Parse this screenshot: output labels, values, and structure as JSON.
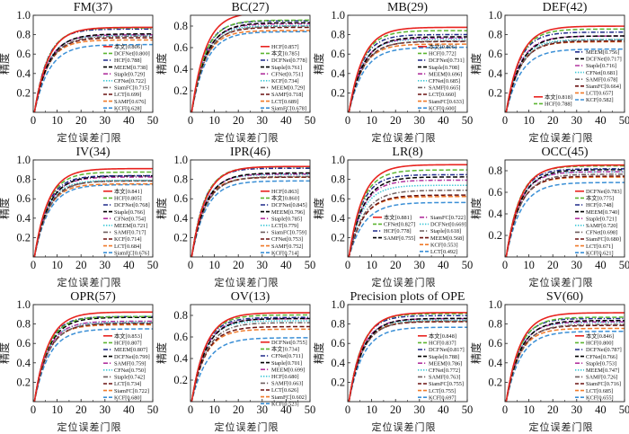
{
  "figure": {
    "xlabel": "定位误差门限",
    "ylabel": "精度"
  },
  "styles": {
    "colors": [
      "#e8231f",
      "#5cb531",
      "#1f2a8a",
      "#000000",
      "#b2359f",
      "#3cc7d6",
      "#6e5f5f",
      "#6b1210",
      "#f07a2a",
      "#3a8fd6"
    ],
    "dashes": [
      "solid",
      "dashed",
      "dash-dot",
      "dashed",
      "dash-dot",
      "dotted",
      "dash-dot",
      "dashed",
      "dashed",
      "dashed"
    ]
  },
  "chart_data": [
    {
      "type": "line",
      "title": "FM(37)",
      "xlabel": "定位误差门限",
      "ylabel": "精度",
      "xlim": [
        0,
        50
      ],
      "ylim": [
        0,
        1.0
      ],
      "xticks": [
        "0",
        "10",
        "20",
        "30",
        "40",
        "50"
      ],
      "yticks": [
        "0.2",
        "0.4",
        "0.6",
        "0.8",
        "1.0"
      ],
      "legend_position": "bottom-right",
      "series": [
        {
          "name": "本文",
          "score": 0.806
        },
        {
          "name": "DCFNet",
          "score": 0.8
        },
        {
          "name": "HCF",
          "score": 0.788
        },
        {
          "name": "MEEM",
          "score": 0.738
        },
        {
          "name": "Staple",
          "score": 0.729
        },
        {
          "name": "CFNet",
          "score": 0.722
        },
        {
          "name": "SiamFC",
          "score": 0.715
        },
        {
          "name": "LCT",
          "score": 0.699
        },
        {
          "name": "SAMF",
          "score": 0.676
        },
        {
          "name": "KCF",
          "score": 0.628
        }
      ]
    },
    {
      "type": "line",
      "title": "BC(27)",
      "xlabel": "定位误差门限",
      "ylabel": "精度",
      "xlim": [
        0,
        50
      ],
      "ylim": [
        0,
        0.9
      ],
      "xticks": [
        "0",
        "10",
        "20",
        "30",
        "40",
        "50"
      ],
      "yticks": [
        "0.2",
        "0.4",
        "0.6",
        "0.8"
      ],
      "legend_position": "bottom-right",
      "series": [
        {
          "name": "HCF",
          "score": 0.857
        },
        {
          "name": "本文",
          "score": 0.785
        },
        {
          "name": "DCFNet",
          "score": 0.778
        },
        {
          "name": "Staple",
          "score": 0.761
        },
        {
          "name": "CFNet",
          "score": 0.751
        },
        {
          "name": "KCF",
          "score": 0.734
        },
        {
          "name": "MEEM",
          "score": 0.729
        },
        {
          "name": "SAMF",
          "score": 0.718
        },
        {
          "name": "LCT",
          "score": 0.689
        },
        {
          "name": "SiamFC",
          "score": 0.678
        }
      ]
    },
    {
      "type": "line",
      "title": "MB(29)",
      "xlabel": "定位误差门限",
      "ylabel": "精度",
      "xlim": [
        0,
        50
      ],
      "ylim": [
        0,
        1.0
      ],
      "xticks": [
        "0",
        "10",
        "20",
        "30",
        "40",
        "50"
      ],
      "yticks": [
        "0.2",
        "0.4",
        "0.6",
        "0.8",
        "1.0"
      ],
      "legend_position": "bottom-right",
      "series": [
        {
          "name": "本文",
          "score": 0.806
        },
        {
          "name": "HCF",
          "score": 0.772
        },
        {
          "name": "DCFNet",
          "score": 0.731
        },
        {
          "name": "Staple",
          "score": 0.708
        },
        {
          "name": "MEEM",
          "score": 0.696
        },
        {
          "name": "CFNet",
          "score": 0.685
        },
        {
          "name": "SAMF",
          "score": 0.665
        },
        {
          "name": "LCT",
          "score": 0.66
        },
        {
          "name": "SiamFC",
          "score": 0.633
        },
        {
          "name": "KCF",
          "score": 0.6
        }
      ]
    },
    {
      "type": "line",
      "title": "DEF(42)",
      "xlabel": "定位误差门限",
      "ylabel": "精度",
      "xlim": [
        0,
        50
      ],
      "ylim": [
        0,
        1.0
      ],
      "xticks": [
        "0",
        "10",
        "20",
        "30",
        "40",
        "50"
      ],
      "yticks": [
        "0.2",
        "0.4",
        "0.6",
        "0.8",
        "1.0"
      ],
      "legend_position": "bottom-right-two-column",
      "series": [
        {
          "name": "本文",
          "score": 0.818
        },
        {
          "name": "HCF",
          "score": 0.788
        },
        {
          "name": "MEEM",
          "score": 0.756
        },
        {
          "name": "DCFNet",
          "score": 0.717
        },
        {
          "name": "Staple",
          "score": 0.716
        },
        {
          "name": "CFNet",
          "score": 0.681
        },
        {
          "name": "SAMF",
          "score": 0.678
        },
        {
          "name": "SiamFC",
          "score": 0.664
        },
        {
          "name": "LCT",
          "score": 0.657
        },
        {
          "name": "KCF",
          "score": 0.582
        }
      ]
    },
    {
      "type": "line",
      "title": "IV(34)",
      "xlabel": "定位误差门限",
      "ylabel": "精度",
      "xlim": [
        0,
        50
      ],
      "ylim": [
        0,
        1.0
      ],
      "xticks": [
        "0",
        "10",
        "20",
        "30",
        "40",
        "50"
      ],
      "yticks": [
        "0.2",
        "0.4",
        "0.6",
        "0.8",
        "1.0"
      ],
      "legend_position": "bottom-right",
      "series": [
        {
          "name": "本文",
          "score": 0.841
        },
        {
          "name": "HCF",
          "score": 0.805
        },
        {
          "name": "DCFNet",
          "score": 0.768
        },
        {
          "name": "Staple",
          "score": 0.766
        },
        {
          "name": "CFNet",
          "score": 0.754
        },
        {
          "name": "MEEM",
          "score": 0.721
        },
        {
          "name": "SAMF",
          "score": 0.717
        },
        {
          "name": "KCF",
          "score": 0.714
        },
        {
          "name": "LCT",
          "score": 0.684
        },
        {
          "name": "SiamFC",
          "score": 0.676
        }
      ]
    },
    {
      "type": "line",
      "title": "IPR(46)",
      "xlabel": "定位误差门限",
      "ylabel": "精度",
      "xlim": [
        0,
        50
      ],
      "ylim": [
        0,
        1.0
      ],
      "xticks": [
        "0",
        "10",
        "20",
        "30",
        "40",
        "50"
      ],
      "yticks": [
        "0.2",
        "0.4",
        "0.6",
        "0.8",
        "1.0"
      ],
      "legend_position": "bottom-right",
      "series": [
        {
          "name": "HCF",
          "score": 0.863
        },
        {
          "name": "本文",
          "score": 0.86
        },
        {
          "name": "DCFNet",
          "score": 0.845
        },
        {
          "name": "MEEM",
          "score": 0.796
        },
        {
          "name": "Staple",
          "score": 0.785
        },
        {
          "name": "LCT",
          "score": 0.779
        },
        {
          "name": "SiamFC",
          "score": 0.759
        },
        {
          "name": "CFNet",
          "score": 0.753
        },
        {
          "name": "SAMF",
          "score": 0.752
        },
        {
          "name": "KCF",
          "score": 0.714
        }
      ]
    },
    {
      "type": "line",
      "title": "LR(8)",
      "xlabel": "定位误差门限",
      "ylabel": "精度",
      "xlim": [
        0,
        50
      ],
      "ylim": [
        0,
        1.0
      ],
      "xticks": [
        "0",
        "10",
        "20",
        "30",
        "40",
        "50"
      ],
      "yticks": [
        "0.2",
        "0.4",
        "0.6",
        "0.8",
        "1.0"
      ],
      "legend_position": "bottom-two-column",
      "series": [
        {
          "name": "本文",
          "score": 0.881
        },
        {
          "name": "CFNet",
          "score": 0.827
        },
        {
          "name": "HCF",
          "score": 0.778
        },
        {
          "name": "SAMF",
          "score": 0.755
        },
        {
          "name": "SiamFC",
          "score": 0.722
        },
        {
          "name": "DCFNet",
          "score": 0.669
        },
        {
          "name": "Staple",
          "score": 0.618
        },
        {
          "name": "MEEM",
          "score": 0.568
        },
        {
          "name": "KCF",
          "score": 0.553
        },
        {
          "name": "LCT",
          "score": 0.492
        }
      ]
    },
    {
      "type": "line",
      "title": "OCC(45)",
      "xlabel": "定位误差门限",
      "ylabel": "精度",
      "xlim": [
        0,
        50
      ],
      "ylim": [
        0,
        0.9
      ],
      "xticks": [
        "0",
        "10",
        "20",
        "30",
        "40",
        "50"
      ],
      "yticks": [
        "0.2",
        "0.4",
        "0.6",
        "0.8"
      ],
      "legend_position": "bottom-right",
      "series": [
        {
          "name": "DCFNet",
          "score": 0.783
        },
        {
          "name": "本文",
          "score": 0.775
        },
        {
          "name": "HCF",
          "score": 0.748
        },
        {
          "name": "MEEM",
          "score": 0.74
        },
        {
          "name": "Staple",
          "score": 0.721
        },
        {
          "name": "SAMF",
          "score": 0.72
        },
        {
          "name": "CFNet",
          "score": 0.698
        },
        {
          "name": "SiamFC",
          "score": 0.68
        },
        {
          "name": "LCT",
          "score": 0.671
        },
        {
          "name": "KCF",
          "score": 0.621
        }
      ]
    },
    {
      "type": "line",
      "title": "OPR(57)",
      "xlabel": "定位误差门限",
      "ylabel": "精度",
      "xlim": [
        0,
        50
      ],
      "ylim": [
        0,
        1.0
      ],
      "xticks": [
        "0",
        "10",
        "20",
        "30",
        "40",
        "50"
      ],
      "yticks": [
        "0.2",
        "0.4",
        "0.6",
        "0.8",
        "1.0"
      ],
      "legend_position": "bottom-right",
      "series": [
        {
          "name": "本文",
          "score": 0.853
        },
        {
          "name": "HCF",
          "score": 0.807
        },
        {
          "name": "MEEM",
          "score": 0.807
        },
        {
          "name": "DCFNet",
          "score": 0.799
        },
        {
          "name": "SAMF",
          "score": 0.759
        },
        {
          "name": "CFNet",
          "score": 0.75
        },
        {
          "name": "Staple",
          "score": 0.742
        },
        {
          "name": "LCT",
          "score": 0.734
        },
        {
          "name": "SiamFC",
          "score": 0.722
        },
        {
          "name": "KCF",
          "score": 0.68
        }
      ]
    },
    {
      "type": "line",
      "title": "OV(13)",
      "xlabel": "定位误差门限",
      "ylabel": "精度",
      "xlim": [
        0,
        50
      ],
      "ylim": [
        0,
        0.9
      ],
      "xticks": [
        "0",
        "10",
        "20",
        "30",
        "40",
        "50"
      ],
      "yticks": [
        "0.2",
        "0.4",
        "0.6",
        "0.8"
      ],
      "legend_position": "right",
      "series": [
        {
          "name": "DCFNet",
          "score": 0.755
        },
        {
          "name": "本文",
          "score": 0.734
        },
        {
          "name": "CFNet",
          "score": 0.711
        },
        {
          "name": "Staple",
          "score": 0.701
        },
        {
          "name": "MEEM",
          "score": 0.699
        },
        {
          "name": "HCF",
          "score": 0.68
        },
        {
          "name": "SAMF",
          "score": 0.663
        },
        {
          "name": "LCT",
          "score": 0.626
        },
        {
          "name": "SiamFC",
          "score": 0.602
        },
        {
          "name": "KCF",
          "score": 0.523
        }
      ]
    },
    {
      "type": "line",
      "title": "Precision plots of OPE",
      "xlabel": "定位误差门限",
      "ylabel": "精度",
      "xlim": [
        0,
        50
      ],
      "ylim": [
        0,
        1.0
      ],
      "xticks": [
        "0",
        "10",
        "20",
        "30",
        "40",
        "50"
      ],
      "yticks": [
        "0.2",
        "0.4",
        "0.6",
        "0.8",
        "1.0"
      ],
      "legend_position": "bottom-right",
      "series": [
        {
          "name": "本文",
          "score": 0.848
        },
        {
          "name": "HCF",
          "score": 0.837
        },
        {
          "name": "DCFNet",
          "score": 0.817
        },
        {
          "name": "Staple",
          "score": 0.788
        },
        {
          "name": "MEEM",
          "score": 0.786
        },
        {
          "name": "CFNet",
          "score": 0.772
        },
        {
          "name": "SAMF",
          "score": 0.763
        },
        {
          "name": "SiamFC",
          "score": 0.755
        },
        {
          "name": "LCT",
          "score": 0.755
        },
        {
          "name": "KCF",
          "score": 0.697
        }
      ]
    },
    {
      "type": "line",
      "title": "SV(60)",
      "xlabel": "定位误差门限",
      "ylabel": "精度",
      "xlim": [
        0,
        50
      ],
      "ylim": [
        0,
        1.0
      ],
      "xticks": [
        "0",
        "10",
        "20",
        "30",
        "40",
        "50"
      ],
      "yticks": [
        "0.2",
        "0.4",
        "0.6",
        "0.8",
        "1.0"
      ],
      "legend_position": "bottom-right",
      "series": [
        {
          "name": "本文",
          "score": 0.846
        },
        {
          "name": "HCF",
          "score": 0.8
        },
        {
          "name": "DCFNet",
          "score": 0.787
        },
        {
          "name": "CFNet",
          "score": 0.766
        },
        {
          "name": "Staple",
          "score": 0.753
        },
        {
          "name": "MEEM",
          "score": 0.747
        },
        {
          "name": "SAMF",
          "score": 0.726
        },
        {
          "name": "SiamFC",
          "score": 0.716
        },
        {
          "name": "LCT",
          "score": 0.685
        },
        {
          "name": "KCF",
          "score": 0.655
        }
      ]
    }
  ]
}
